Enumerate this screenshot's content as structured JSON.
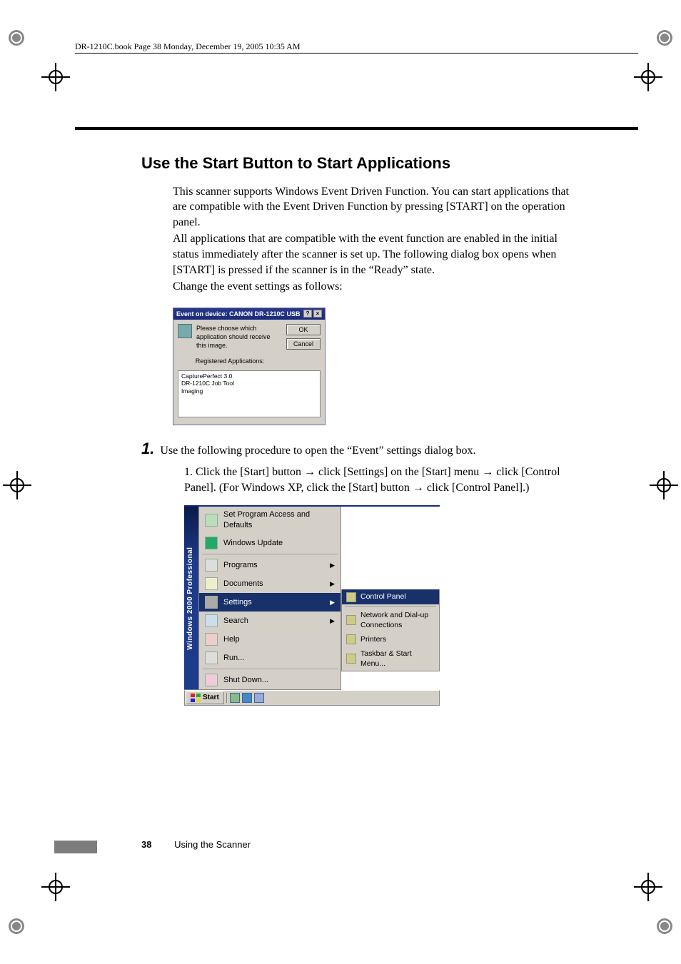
{
  "header": {
    "running_head": "DR-1210C.book  Page 38  Monday, December 19, 2005  10:35 AM"
  },
  "section": {
    "title": "Use the Start Button to Start Applications",
    "paragraph1": "This scanner supports Windows Event Driven Function. You can start applications that are compatible with the Event Driven Function by pressing [START] on the operation panel.",
    "paragraph2": "All applications that are compatible with the event function are enabled in the initial status immediately after the scanner is set up. The following dialog box opens when [START] is pressed if the scanner is in the “Ready” state.",
    "paragraph3": "Change the event settings as follows:"
  },
  "event_dialog": {
    "title": "Event on  device: CANON DR-1210C USB",
    "message": "Please choose which application should receive this image.",
    "registered_label": "Registered Applications:",
    "apps": [
      "CapturePerfect 3.0",
      "DR-1210C Job Tool",
      "Imaging"
    ],
    "ok": "OK",
    "cancel": "Cancel"
  },
  "step": {
    "number": "1.",
    "text": "Use the following procedure to open the “Event” settings dialog box.",
    "sub_number": "1.",
    "sub_text_a": "Click the [Start] button ",
    "sub_text_b": " click [Settings] on the [Start] menu ",
    "sub_text_c": " click [Control Panel]. (For Windows XP, click the [Start] button ",
    "sub_text_d": " click [Control Panel].)",
    "arrow": "→"
  },
  "start_menu": {
    "strip": "Windows 2000 Professional",
    "items_top": [
      {
        "label": "Set Program Access and Defaults",
        "has_arrow": false
      },
      {
        "label": "Windows Update",
        "has_arrow": false
      }
    ],
    "items_mid": [
      {
        "label": "Programs",
        "has_arrow": true
      },
      {
        "label": "Documents",
        "has_arrow": true
      },
      {
        "label": "Settings",
        "has_arrow": true,
        "highlight": true
      },
      {
        "label": "Search",
        "has_arrow": true
      },
      {
        "label": "Help",
        "has_arrow": false
      },
      {
        "label": "Run...",
        "has_arrow": false
      }
    ],
    "items_bot": [
      {
        "label": "Shut Down...",
        "has_arrow": false
      }
    ],
    "submenu": [
      {
        "label": "Control Panel",
        "highlight": true
      },
      {
        "label": "Network and Dial-up Connections"
      },
      {
        "label": "Printers"
      },
      {
        "label": "Taskbar & Start Menu..."
      }
    ]
  },
  "taskbar": {
    "start": "Start"
  },
  "footer": {
    "page": "38",
    "label": "Using the Scanner"
  }
}
